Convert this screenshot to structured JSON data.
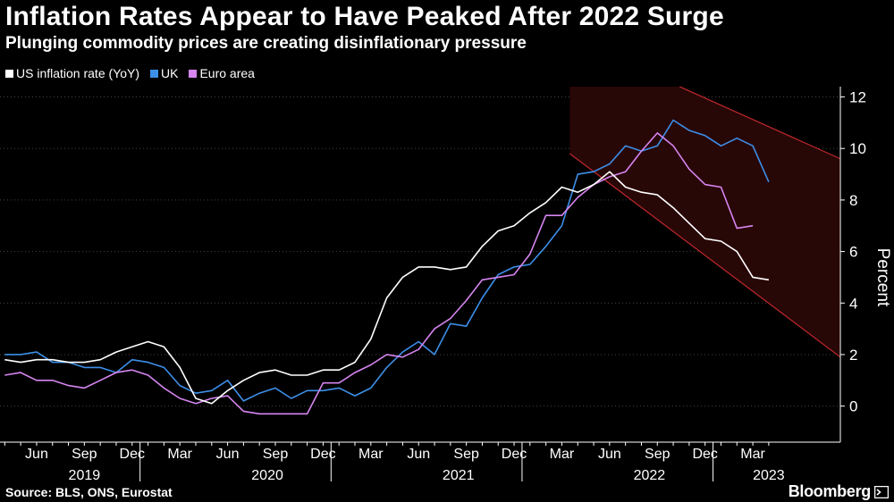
{
  "header": {
    "title": "Inflation Rates Appear to Have Peaked After 2022 Surge",
    "subtitle": "Plunging commodity prices are creating disinflationary pressure"
  },
  "footer": {
    "source": "Source: BLS, ONS, Eurostat",
    "brand": "Bloomberg"
  },
  "colors": {
    "background": "#000000",
    "us": "#ffffff",
    "uk": "#3d8fe8",
    "euro": "#d685f0",
    "band_fill": "#2a0707",
    "band_edge": "#c0282c",
    "grid": "#444444"
  },
  "chart_data": {
    "type": "line",
    "title": "Inflation Rates Appear to Have Peaked After 2022 Surge",
    "ylabel": "Percent",
    "ylim": [
      -1.4,
      12.4
    ],
    "yticks": [
      0,
      2,
      4,
      6,
      8,
      10,
      12
    ],
    "x_start": "2019-04",
    "x_months": 48,
    "month_labels": [
      {
        "m": 2,
        "label": "Jun"
      },
      {
        "m": 5,
        "label": "Sep"
      },
      {
        "m": 8,
        "label": "Dec"
      },
      {
        "m": 11,
        "label": "Mar"
      },
      {
        "m": 14,
        "label": "Jun"
      },
      {
        "m": 17,
        "label": "Sep"
      },
      {
        "m": 20,
        "label": "Dec"
      },
      {
        "m": 23,
        "label": "Mar"
      },
      {
        "m": 26,
        "label": "Jun"
      },
      {
        "m": 29,
        "label": "Sep"
      },
      {
        "m": 32,
        "label": "Dec"
      },
      {
        "m": 35,
        "label": "Mar"
      },
      {
        "m": 38,
        "label": "Jun"
      },
      {
        "m": 41,
        "label": "Sep"
      },
      {
        "m": 44,
        "label": "Dec"
      },
      {
        "m": 47,
        "label": "Mar"
      }
    ],
    "year_labels": [
      {
        "m": 5,
        "label": "2019"
      },
      {
        "m": 16.5,
        "label": "2020"
      },
      {
        "m": 28.5,
        "label": "2021"
      },
      {
        "m": 40.5,
        "label": "2022"
      },
      {
        "m": 48,
        "label": "2023"
      }
    ],
    "year_separators": [
      8.5,
      20.5,
      32.5,
      44.5
    ],
    "series": [
      {
        "name": "US inflation rate (YoY)",
        "key": "us",
        "values": [
          1.8,
          1.7,
          1.8,
          1.8,
          1.7,
          1.7,
          1.8,
          2.1,
          2.3,
          2.5,
          2.3,
          1.5,
          0.3,
          0.1,
          0.6,
          1.0,
          1.3,
          1.4,
          1.2,
          1.2,
          1.4,
          1.4,
          1.7,
          2.6,
          4.2,
          5.0,
          5.4,
          5.4,
          5.3,
          5.4,
          6.2,
          6.8,
          7.0,
          7.5,
          7.9,
          8.5,
          8.3,
          8.6,
          9.1,
          8.5,
          8.3,
          8.2,
          7.7,
          7.1,
          6.5,
          6.4,
          6.0,
          5.0,
          4.9
        ]
      },
      {
        "name": "UK",
        "key": "uk",
        "values": [
          2.0,
          2.0,
          2.1,
          1.7,
          1.7,
          1.5,
          1.5,
          1.3,
          1.8,
          1.7,
          1.5,
          0.8,
          0.5,
          0.6,
          1.0,
          0.2,
          0.5,
          0.7,
          0.3,
          0.6,
          0.6,
          0.7,
          0.4,
          0.7,
          1.5,
          2.1,
          2.5,
          2.0,
          3.2,
          3.1,
          4.2,
          5.1,
          5.4,
          5.5,
          6.2,
          7.0,
          9.0,
          9.1,
          9.4,
          10.1,
          9.9,
          10.1,
          11.1,
          10.7,
          10.5,
          10.1,
          10.4,
          10.1,
          8.7
        ]
      },
      {
        "name": "Euro area",
        "key": "euro",
        "values": [
          1.2,
          1.3,
          1.0,
          1.0,
          0.8,
          0.7,
          1.0,
          1.3,
          1.4,
          1.2,
          0.7,
          0.3,
          0.1,
          0.3,
          0.4,
          -0.2,
          -0.3,
          -0.3,
          -0.3,
          -0.3,
          0.9,
          0.9,
          1.3,
          1.6,
          2.0,
          1.9,
          2.2,
          3.0,
          3.4,
          4.1,
          4.9,
          5.0,
          5.1,
          5.9,
          7.4,
          7.4,
          8.1,
          8.6,
          8.9,
          9.1,
          9.9,
          10.6,
          10.1,
          9.2,
          8.6,
          8.5,
          6.9,
          7.0
        ]
      }
    ],
    "annotation": {
      "type": "downward_band",
      "box_top_y": 12.4,
      "start_m": 35.5,
      "upper_line": [
        [
          42.4,
          12.4
        ],
        [
          52.5,
          9.6
        ]
      ],
      "lower_line": [
        [
          35.5,
          9.8
        ],
        [
          52.5,
          1.9
        ]
      ]
    }
  }
}
